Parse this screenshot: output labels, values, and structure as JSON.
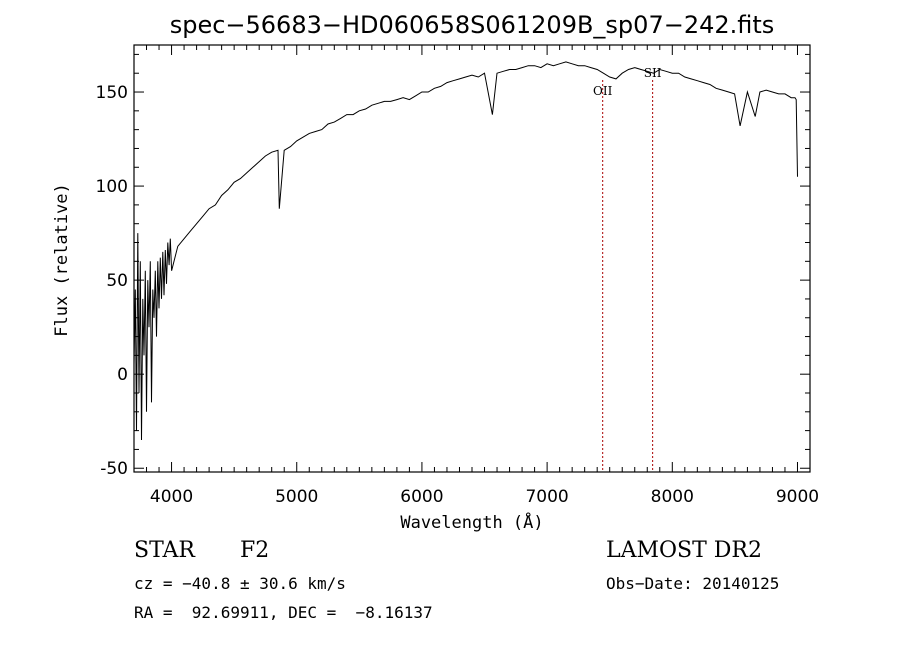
{
  "chart_data": {
    "type": "line",
    "title": "spec−56683−HD060658S061209B_sp07−242.fits",
    "xlabel": "Wavelength (Å)",
    "ylabel": "Flux (relative)",
    "xlim": [
      3700,
      9100
    ],
    "ylim": [
      -52,
      175
    ],
    "x_ticks": [
      4000,
      5000,
      6000,
      7000,
      8000,
      9000
    ],
    "y_ticks": [
      -50,
      0,
      50,
      100,
      150
    ],
    "grid": false,
    "line_color": "#000000",
    "marker_color": "#aa0000",
    "spectrum": {
      "x": [
        3700,
        3710,
        3720,
        3730,
        3740,
        3750,
        3760,
        3770,
        3780,
        3790,
        3800,
        3810,
        3820,
        3830,
        3840,
        3850,
        3860,
        3870,
        3880,
        3890,
        3900,
        3910,
        3920,
        3930,
        3940,
        3950,
        3960,
        3970,
        3980,
        3990,
        4000,
        4050,
        4100,
        4150,
        4200,
        4250,
        4300,
        4350,
        4400,
        4450,
        4500,
        4550,
        4600,
        4650,
        4700,
        4750,
        4800,
        4850,
        4861,
        4900,
        4950,
        5000,
        5050,
        5100,
        5150,
        5200,
        5250,
        5300,
        5350,
        5400,
        5450,
        5500,
        5550,
        5600,
        5650,
        5700,
        5750,
        5800,
        5850,
        5900,
        5950,
        6000,
        6050,
        6100,
        6150,
        6200,
        6250,
        6300,
        6350,
        6400,
        6450,
        6500,
        6563,
        6600,
        6650,
        6700,
        6750,
        6800,
        6850,
        6900,
        6950,
        7000,
        7050,
        7100,
        7150,
        7200,
        7250,
        7300,
        7350,
        7400,
        7450,
        7500,
        7550,
        7600,
        7650,
        7700,
        7750,
        7800,
        7850,
        7900,
        7950,
        8000,
        8050,
        8100,
        8150,
        8200,
        8250,
        8300,
        8350,
        8400,
        8450,
        8498,
        8542,
        8600,
        8662,
        8700,
        8750,
        8800,
        8850,
        8900,
        8950,
        8980,
        8990,
        9000
      ],
      "flux": [
        5,
        45,
        -30,
        75,
        -10,
        60,
        -35,
        40,
        10,
        55,
        -20,
        50,
        25,
        60,
        -15,
        45,
        30,
        55,
        20,
        60,
        35,
        62,
        40,
        65,
        42,
        66,
        48,
        70,
        58,
        72,
        55,
        68,
        72,
        76,
        80,
        84,
        88,
        90,
        95,
        98,
        102,
        104,
        107,
        110,
        113,
        116,
        118,
        119,
        88,
        119,
        121,
        124,
        126,
        128,
        129,
        130,
        133,
        134,
        136,
        138,
        138,
        140,
        141,
        143,
        144,
        145,
        145,
        146,
        147,
        146,
        148,
        150,
        150,
        152,
        153,
        155,
        156,
        157,
        158,
        159,
        158,
        160,
        138,
        160,
        161,
        162,
        162,
        163,
        164,
        164,
        163,
        165,
        164,
        165,
        166,
        165,
        164,
        164,
        163,
        162,
        160,
        158,
        157,
        160,
        162,
        163,
        162,
        161,
        160,
        162,
        161,
        160,
        160,
        158,
        157,
        156,
        155,
        154,
        152,
        151,
        150,
        149,
        132,
        150,
        137,
        150,
        151,
        150,
        149,
        149,
        147,
        147,
        146,
        105
      ]
    },
    "line_markers": [
      {
        "label": "OII",
        "wavelength": 7444
      },
      {
        "label": "SII",
        "wavelength": 7843
      }
    ]
  },
  "info": {
    "object_class": "STAR",
    "subclass": "F2",
    "survey": "LAMOST DR2",
    "cz": "cz = −40.8 ± 30.6 km/s",
    "obs_date": "Obs−Date: 20140125",
    "coords": "RA =  92.69911, DEC =  −8.16137"
  }
}
